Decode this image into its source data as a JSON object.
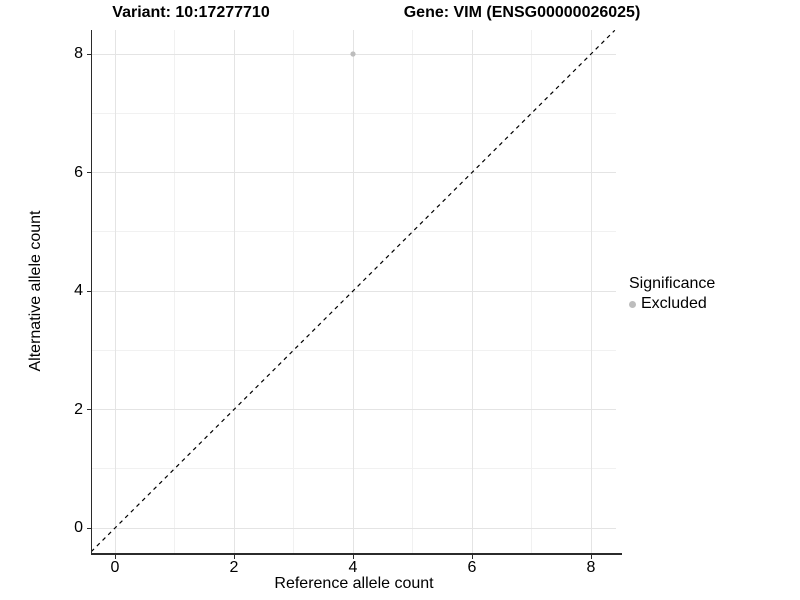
{
  "titles": {
    "variant": "Variant: 10:17277710",
    "gene": "Gene: VIM (ENSG00000026025)"
  },
  "axes": {
    "x": {
      "label": "Reference allele count",
      "tick_labels": [
        "0",
        "2",
        "4",
        "6",
        "8"
      ]
    },
    "y": {
      "label": "Alternative allele count",
      "tick_labels": [
        "0",
        "2",
        "4",
        "6",
        "8"
      ]
    }
  },
  "legend": {
    "title": "Significance",
    "items": [
      {
        "label": "Excluded",
        "color": "#bdbdbd"
      }
    ],
    "position": "right"
  },
  "colors": {
    "background": "#ffffff",
    "grid_major": "#e4e4e4",
    "grid_minor": "#f1f1f1",
    "axis_line": "#2b2b2b",
    "reference_line": "#000000",
    "excluded_point": "#bdbdbd"
  },
  "chart_data": {
    "type": "scatter",
    "title": "Variant: 10:17277710   Gene: VIM (ENSG00000026025)",
    "xlabel": "Reference allele count",
    "ylabel": "Alternative allele count",
    "xlim": [
      -0.4,
      8.4
    ],
    "ylim": [
      -0.4,
      8.4
    ],
    "x_major_ticks": [
      0,
      2,
      4,
      6,
      8
    ],
    "y_major_ticks": [
      0,
      2,
      4,
      6,
      8
    ],
    "x_minor_ticks": [
      1,
      3,
      5,
      7
    ],
    "y_minor_ticks": [
      1,
      3,
      5,
      7
    ],
    "grid": true,
    "legend_position": "right",
    "series": [
      {
        "name": "Excluded",
        "color": "#bdbdbd",
        "marker": "circle",
        "points": [
          {
            "x": 4,
            "y": 8
          }
        ]
      }
    ],
    "reference_line": {
      "type": "identity",
      "equation": "y = x",
      "style": "dashed",
      "color": "#000000",
      "from": [
        -0.4,
        -0.4
      ],
      "to": [
        8.4,
        8.4
      ]
    }
  }
}
